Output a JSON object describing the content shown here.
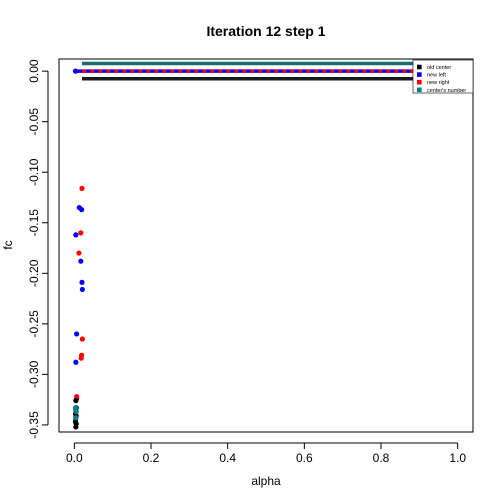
{
  "chart_data": {
    "type": "scatter",
    "title": "Iteration 12 step 1",
    "xlabel": "alpha",
    "ylabel": "fc",
    "xlim": [
      -0.04,
      1.04
    ],
    "ylim": [
      -0.357,
      0.012
    ],
    "xticks": [
      0.0,
      0.2,
      0.4,
      0.6,
      0.8,
      1.0
    ],
    "xtick_labels": [
      "0.0",
      "0.2",
      "0.4",
      "0.6",
      "0.8",
      "1.0"
    ],
    "yticks": [
      0.0,
      -0.05,
      -0.1,
      -0.15,
      -0.2,
      -0.25,
      -0.3,
      -0.35
    ],
    "ytick_labels": [
      "0.00",
      "-0.05",
      "-0.10",
      "-0.15",
      "-0.20",
      "-0.25",
      "-0.30",
      "-0.35"
    ],
    "legend": {
      "position": "top-right",
      "entries": [
        {
          "label": "old center",
          "color": "#000000"
        },
        {
          "label": "new left",
          "color": "#0000ff"
        },
        {
          "label": "new right",
          "color": "#ff0000"
        },
        {
          "label": "center's number",
          "color": "#008080"
        }
      ]
    },
    "hlines": [
      {
        "name": "old center",
        "y": -0.0075,
        "color": "#1a1a1a"
      },
      {
        "name": "center's number",
        "y": 0.0075,
        "color": "#1a6b6b"
      },
      {
        "name": "new left / new right",
        "y": 0.0,
        "color": "#0000ff",
        "color2": "#ff0000",
        "dashed": true
      }
    ],
    "series": [
      {
        "name": "new left",
        "color": "#0000ff",
        "points": [
          [
            0.003,
            0.0
          ],
          [
            0.013,
            -0.135
          ],
          [
            0.019,
            -0.137
          ],
          [
            0.004,
            -0.162
          ],
          [
            0.017,
            -0.188
          ],
          [
            0.02,
            -0.209
          ],
          [
            0.021,
            -0.216
          ],
          [
            0.006,
            -0.26
          ],
          [
            0.004,
            -0.288
          ],
          [
            0.006,
            -0.324
          ],
          [
            0.004,
            -0.336
          ]
        ]
      },
      {
        "name": "new right",
        "color": "#ff0000",
        "points": [
          [
            0.02,
            -0.116
          ],
          [
            0.017,
            -0.16
          ],
          [
            0.012,
            -0.18
          ],
          [
            0.021,
            -0.265
          ],
          [
            0.019,
            -0.281
          ],
          [
            0.018,
            -0.284
          ],
          [
            0.006,
            -0.322
          ],
          [
            0.005,
            -0.341
          ],
          [
            0.003,
            -0.345
          ]
        ]
      },
      {
        "name": "old center",
        "color": "#000000",
        "points": [
          [
            0.004,
            -0.326
          ],
          [
            0.005,
            -0.333
          ],
          [
            0.003,
            -0.339
          ],
          [
            0.004,
            -0.342
          ],
          [
            0.003,
            -0.347
          ],
          [
            0.005,
            -0.349
          ],
          [
            0.004,
            -0.352
          ]
        ]
      },
      {
        "name": "center's number",
        "color": "#008080",
        "points": [
          [
            0.003,
            -0.333
          ],
          [
            0.005,
            -0.337
          ],
          [
            0.004,
            -0.343
          ]
        ]
      }
    ]
  }
}
